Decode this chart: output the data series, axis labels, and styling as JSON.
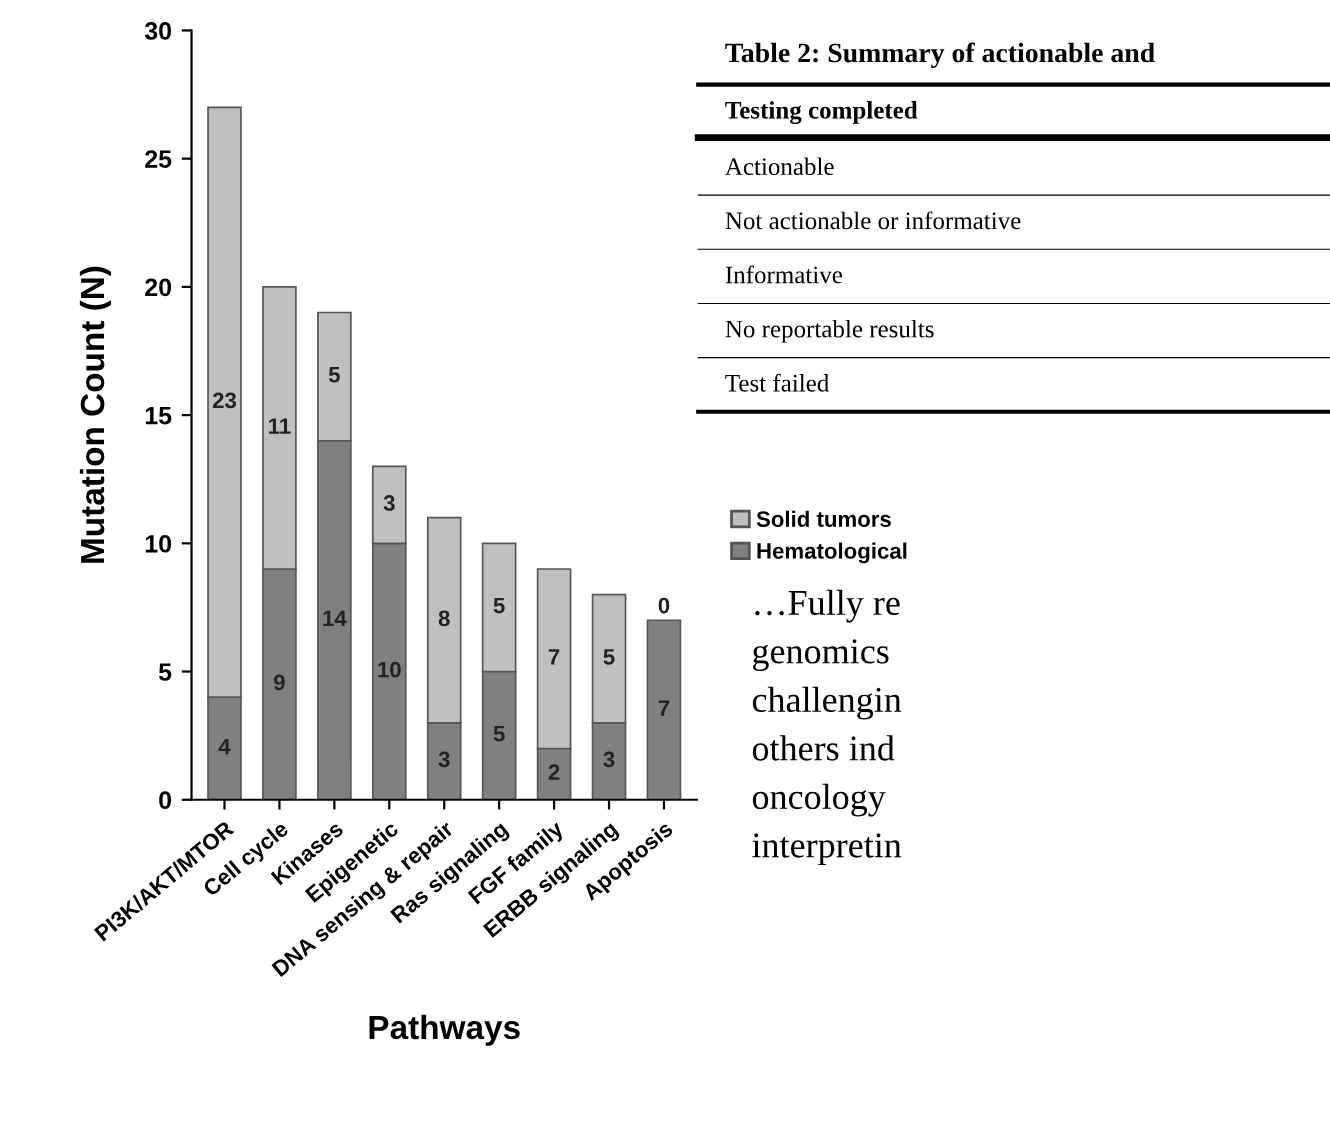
{
  "chart_data": {
    "type": "bar",
    "stacked": true,
    "ylabel": "Mutation Count (N)",
    "xlabel": "Pathways",
    "categories": [
      "PI3K/AKT/MTOR",
      "Cell cycle",
      "Kinases",
      "Epigenetic",
      "DNA sensing & repair",
      "Ras signaling",
      "FGF family",
      "ERBB signaling",
      "Apoptosis"
    ],
    "series": [
      {
        "name": "Hematological",
        "color": "#808080",
        "values": [
          4,
          9,
          14,
          10,
          3,
          5,
          2,
          3,
          7
        ]
      },
      {
        "name": "Solid tumors",
        "color": "#c0c0c0",
        "values": [
          23,
          11,
          5,
          3,
          8,
          5,
          7,
          5,
          0
        ]
      }
    ],
    "ylim": [
      0,
      30
    ],
    "yticks": [
      0,
      5,
      10,
      15,
      20,
      25,
      30
    ],
    "grid": false,
    "legend": "right",
    "data_labels": true,
    "annotations": [
      "Table 2: Summary of actionable and",
      "Testing completed",
      "Actionable",
      "Not actionable or informative",
      "Informative",
      "No reportable results",
      "Test failed",
      "…Fully re",
      "genomics",
      "challengin",
      "others ind",
      "oncology",
      "interpretin"
    ]
  }
}
